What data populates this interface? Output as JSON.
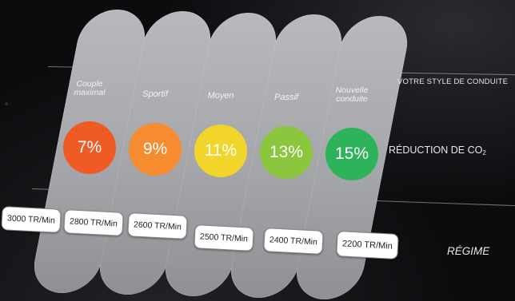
{
  "columns": [
    {
      "label_lines": [
        "Couple",
        "maximal"
      ],
      "percent": "7%",
      "color": "#f05a24",
      "regime": "3000 TR/Min"
    },
    {
      "label_lines": [
        "Sportif"
      ],
      "percent": "9%",
      "color": "#f68b2f",
      "regime": "2800 TR/Min"
    },
    {
      "label_lines": [
        "Moyen"
      ],
      "percent": "11%",
      "color": "#f2d52a",
      "regime": "2600 TR/Min"
    },
    {
      "label_lines": [
        "Passif"
      ],
      "percent": "13%",
      "color": "#8cc63f",
      "regime": "2500 TR/Min"
    },
    {
      "label_lines": [
        "Nouvelle",
        "conduite"
      ],
      "percent": "15%",
      "color": "#2db35a",
      "regime": "2400 TR/Min"
    }
  ],
  "extra_regime": "2200 TR/Min",
  "side_labels": {
    "style": "VOTRE STYLE DE CONDUITE",
    "reduction": "RÉDUCTION DE CO",
    "reduction_sub": "2",
    "regime": "RÉGIME"
  },
  "colors": {
    "background": "#0b0c0e",
    "column": "#a9abaf",
    "pill": "#ffffff"
  }
}
